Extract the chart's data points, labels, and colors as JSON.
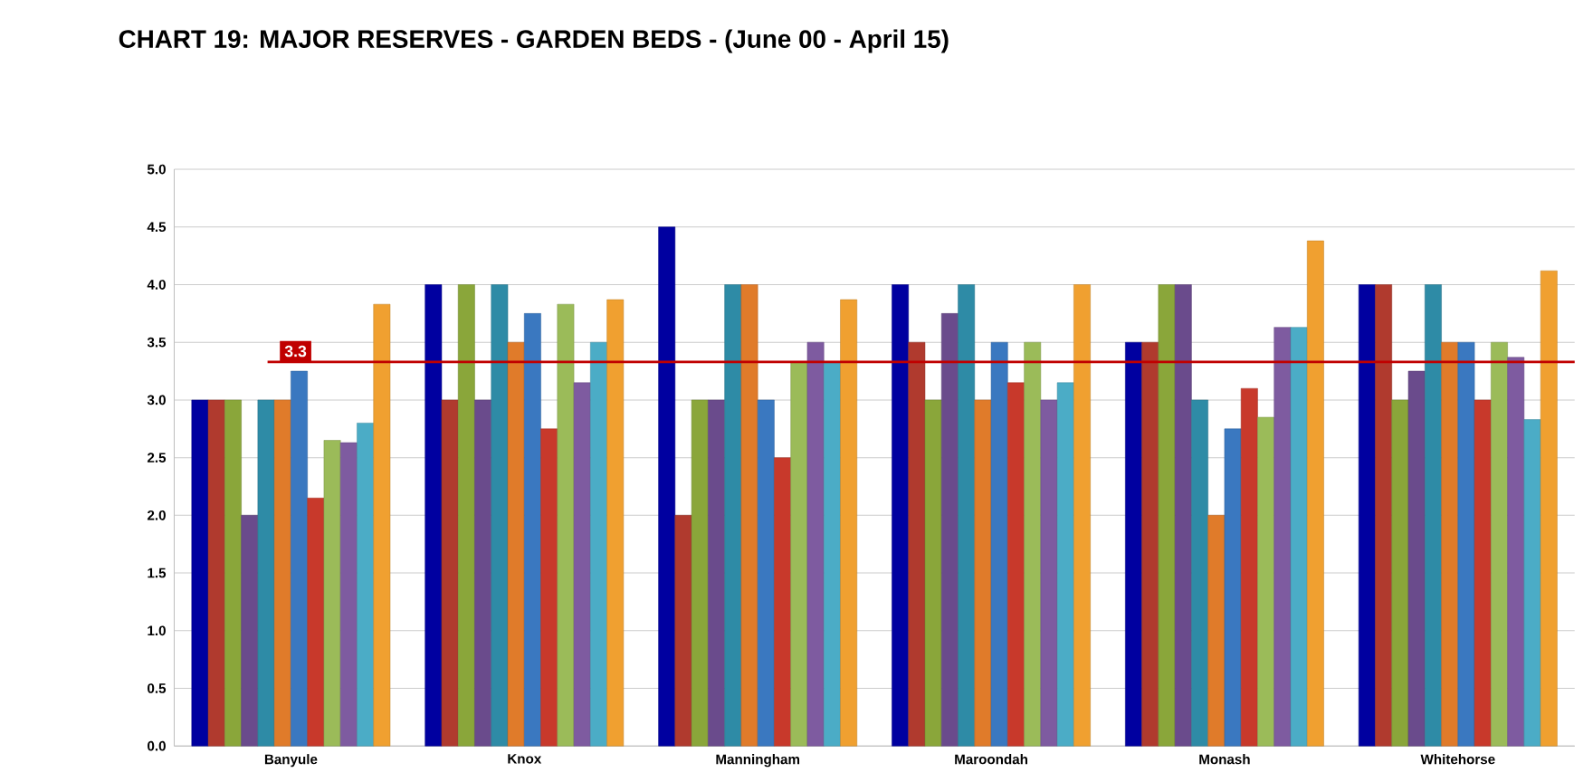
{
  "chart_data": {
    "type": "bar",
    "title": "CHART 19:  MAJOR RESERVES - GARDEN BEDS - (June 00 - April 15)",
    "categories": [
      "Banyule",
      "Knox",
      "Manningham",
      "Maroondah",
      "Monash",
      "Whitehorse"
    ],
    "series": [
      {
        "color": "#0000a0",
        "values": [
          3.0,
          4.0,
          4.5,
          4.0,
          3.5,
          4.0
        ]
      },
      {
        "color": "#b03a2e",
        "values": [
          3.0,
          3.0,
          2.0,
          3.5,
          3.5,
          4.0
        ]
      },
      {
        "color": "#8aa63a",
        "values": [
          3.0,
          4.0,
          3.0,
          3.0,
          4.0,
          3.0
        ]
      },
      {
        "color": "#6a4b8c",
        "values": [
          2.0,
          3.0,
          3.0,
          3.75,
          4.0,
          3.25
        ]
      },
      {
        "color": "#2e8ba6",
        "values": [
          3.0,
          4.0,
          4.0,
          4.0,
          3.0,
          4.0
        ]
      },
      {
        "color": "#e07b2a",
        "values": [
          3.0,
          3.5,
          4.0,
          3.0,
          2.0,
          3.5
        ]
      },
      {
        "color": "#3a78c0",
        "values": [
          3.25,
          3.75,
          3.0,
          3.5,
          2.75,
          3.5
        ]
      },
      {
        "color": "#c8392b",
        "values": [
          2.15,
          2.75,
          2.5,
          3.15,
          3.1,
          3.0
        ]
      },
      {
        "color": "#9bbb59",
        "values": [
          2.65,
          3.83,
          3.33,
          3.5,
          2.85,
          3.5
        ]
      },
      {
        "color": "#7e5ba0",
        "values": [
          2.63,
          3.15,
          3.5,
          3.0,
          3.63,
          3.37
        ]
      },
      {
        "color": "#4bacc6",
        "values": [
          2.8,
          3.5,
          3.33,
          3.15,
          3.63,
          2.83
        ]
      },
      {
        "color": "#f0a030",
        "values": [
          3.83,
          3.87,
          3.87,
          4.0,
          4.38,
          4.12
        ]
      }
    ],
    "ylim": [
      0,
      5
    ],
    "yticks": [
      {
        "value": 0,
        "label": "0.0"
      },
      {
        "value": 0.5,
        "label": "0.5"
      },
      {
        "value": 1,
        "label": "1.0"
      },
      {
        "value": 1.5,
        "label": "1.5"
      },
      {
        "value": 2,
        "label": "2.0"
      },
      {
        "value": 2.5,
        "label": "2.5"
      },
      {
        "value": 3,
        "label": "3.0"
      },
      {
        "value": 3.5,
        "label": "3.5"
      },
      {
        "value": 4,
        "label": "4.0"
      },
      {
        "value": 4.5,
        "label": "4.5"
      },
      {
        "value": 5,
        "label": "5.0"
      }
    ],
    "grid": "y",
    "ref_lines": [
      {
        "axis": "y",
        "value": 3.33,
        "label": "3.3",
        "color": "#c00000"
      }
    ]
  }
}
